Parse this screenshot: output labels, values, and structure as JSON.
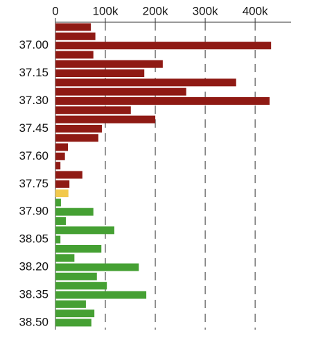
{
  "chart_data": {
    "type": "bar",
    "orientation": "horizontal",
    "categories": [
      null,
      null,
      "37.00",
      null,
      null,
      "37.15",
      null,
      null,
      "37.30",
      null,
      null,
      "37.45",
      null,
      null,
      "37.60",
      null,
      null,
      "37.75",
      null,
      null,
      "37.90",
      null,
      null,
      "38.05",
      null,
      null,
      "38.20",
      null,
      null,
      "38.35",
      null,
      null,
      "38.50"
    ],
    "values": [
      71000,
      80000,
      432000,
      76000,
      215000,
      178000,
      362000,
      262000,
      429000,
      151000,
      200000,
      93000,
      86000,
      25000,
      19000,
      10000,
      54000,
      28000,
      26000,
      11000,
      76000,
      21000,
      118000,
      10000,
      92000,
      38000,
      167000,
      83000,
      103000,
      182000,
      61000,
      78000,
      72000
    ],
    "colors": [
      "#8f1a14",
      "#8f1a14",
      "#8f1a14",
      "#8f1a14",
      "#8f1a14",
      "#8f1a14",
      "#8f1a14",
      "#8f1a14",
      "#8f1a14",
      "#8f1a14",
      "#8f1a14",
      "#8f1a14",
      "#8f1a14",
      "#8f1a14",
      "#8f1a14",
      "#8f1a14",
      "#8f1a14",
      "#8f1a14",
      "#f2c94c",
      "#45a033",
      "#45a033",
      "#45a033",
      "#45a033",
      "#45a033",
      "#45a033",
      "#45a033",
      "#45a033",
      "#45a033",
      "#45a033",
      "#45a033",
      "#45a033",
      "#45a033",
      "#45a033"
    ],
    "xlim": [
      0,
      472000
    ],
    "xticks": [
      0,
      {
        "value": 100000,
        "label": "100k"
      },
      {
        "value": 200000,
        "label": "200k"
      },
      {
        "value": 300000,
        "label": "300k"
      },
      {
        "value": 400000,
        "label": "400k"
      }
    ],
    "grid": true
  }
}
